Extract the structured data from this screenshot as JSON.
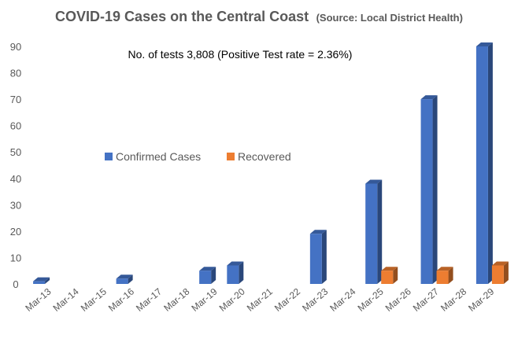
{
  "chart_data": {
    "type": "bar",
    "title": "COVID-19 Cases on the Central Coast",
    "subtitle": "(Source: Local District Health)",
    "annotation": "No. of tests 3,808  (Positive Test rate = 2.36%)",
    "categories": [
      "Mar-13",
      "Mar-14",
      "Mar-15",
      "Mar-16",
      "Mar-17",
      "Mar-18",
      "Mar-19",
      "Mar-20",
      "Mar-21",
      "Mar-22",
      "Mar-23",
      "Mar-24",
      "Mar-25",
      "Mar-26",
      "Mar-27",
      "Mar-28",
      "Mar-29"
    ],
    "series": [
      {
        "name": "Confirmed Cases",
        "color": "#4472C4",
        "values": [
          1,
          null,
          null,
          2,
          null,
          null,
          5,
          7,
          null,
          null,
          19,
          null,
          38,
          null,
          70,
          null,
          90
        ]
      },
      {
        "name": "Recovered",
        "color": "#ED7D31",
        "values": [
          null,
          null,
          null,
          null,
          null,
          null,
          null,
          null,
          null,
          null,
          null,
          null,
          5,
          null,
          5,
          null,
          7
        ]
      }
    ],
    "ylim": [
      0,
      90
    ],
    "yticks": [
      0,
      10,
      20,
      30,
      40,
      50,
      60,
      70,
      80,
      90
    ],
    "grid": false,
    "bar_style": "3d",
    "legend_position": "center-left",
    "xlabel": "",
    "ylabel": ""
  }
}
